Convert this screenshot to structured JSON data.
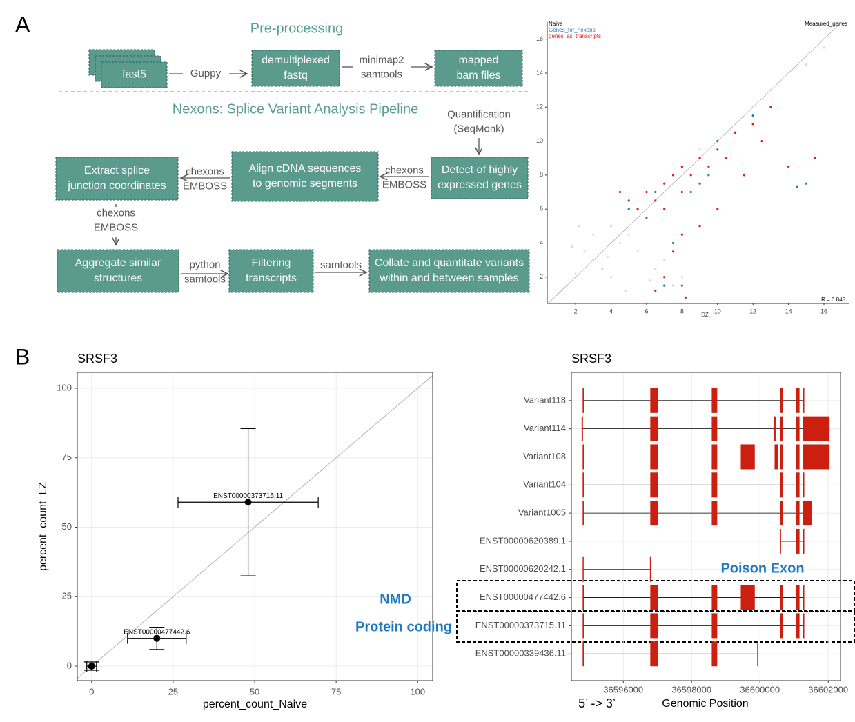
{
  "panel_labels": [
    "A",
    "B"
  ],
  "diagram": {
    "headings": [
      "Pre-processing",
      "Nexons: Splice Variant Analysis Pipeline"
    ],
    "nodes": [
      {
        "label": [
          "fast5"
        ]
      },
      {
        "label": [
          "demultiplexed",
          "fastq"
        ]
      },
      {
        "label": [
          "mapped",
          "bam files"
        ]
      },
      {
        "label": [
          "Detect of highly",
          "expressed genes"
        ]
      },
      {
        "label": [
          "Align cDNA sequences",
          "to genomic segments"
        ]
      },
      {
        "label": [
          "Extract splice",
          "junction coordinates"
        ]
      },
      {
        "label": [
          "Aggregate similar",
          "structures"
        ]
      },
      {
        "label": [
          "Filtering",
          "transcripts"
        ]
      },
      {
        "label": [
          "Collate and quantitate variants",
          "within and between samples"
        ]
      }
    ],
    "edges": [
      {
        "label": [
          "Guppy"
        ]
      },
      {
        "label": [
          "minimap2",
          "samtools"
        ]
      },
      {
        "label": [
          "Quantification",
          "(SeqMonk)"
        ]
      },
      {
        "label": [
          "chexons",
          "EMBOSS"
        ]
      },
      {
        "label": [
          "chexons",
          "EMBOSS"
        ]
      },
      {
        "label": [
          "chexons",
          "EMBOSS"
        ]
      },
      {
        "label": [
          "python",
          "samtools"
        ]
      },
      {
        "label": [
          "samtools"
        ]
      }
    ]
  },
  "chart_data": [
    {
      "type": "scatter",
      "ylabel": "Naive",
      "xlabel": "DZ",
      "annotation": "R = 0.845",
      "xlim": [
        0.4,
        17.4
      ],
      "ylim": [
        0.45,
        17.0
      ],
      "xticks": [
        2,
        4,
        6,
        8,
        10,
        12,
        14,
        16
      ],
      "yticks": [
        2,
        4,
        6,
        8,
        10,
        12,
        14,
        16
      ],
      "series": [
        {
          "name": "Measured_genes",
          "color": "#d9d9d9",
          "x": [
            1.5,
            2,
            2.5,
            3,
            3,
            3.5,
            4,
            4,
            4.5,
            5,
            5,
            5.5,
            6,
            6.5,
            7,
            7.5,
            8,
            9,
            12,
            13,
            14,
            15,
            16,
            2.2,
            3.8,
            6.2,
            4.8,
            1.8
          ],
          "values": [
            1.5,
            2.2,
            3.5,
            3,
            4.5,
            2.5,
            5,
            2,
            4,
            4.5,
            6,
            3.5,
            5.5,
            2.5,
            3,
            1.5,
            2,
            9.5,
            12,
            13,
            14,
            14.5,
            15.5,
            5,
            3.2,
            1.8,
            1.2,
            3.8
          ]
        },
        {
          "name": "Genes_for_nexons",
          "color": "#2b7bba",
          "x": [
            5,
            6.5,
            7,
            8,
            8.5,
            9,
            9.5,
            10,
            11,
            12,
            7.5,
            8,
            15,
            14.5,
            6
          ],
          "values": [
            6,
            7,
            1.5,
            8.5,
            7,
            9,
            8,
            10,
            10.5,
            11.5,
            4,
            1.5,
            7.5,
            7.3,
            5.5
          ]
        },
        {
          "name": "genes_as_transcripts",
          "color": "#e31a1c",
          "x": [
            5,
            5.5,
            6,
            6.5,
            7,
            7,
            7.5,
            8,
            8,
            8.5,
            9,
            9,
            9.5,
            10,
            10.5,
            11,
            12,
            12.5,
            13,
            7,
            7.5,
            8,
            9,
            10,
            6.5,
            4.5,
            15.5,
            14,
            11.5,
            8.2
          ],
          "values": [
            6.5,
            6,
            7,
            6.5,
            7.5,
            6,
            8,
            7,
            8.5,
            8,
            9,
            7.5,
            8.5,
            9.5,
            9,
            10.5,
            11,
            10,
            12,
            2,
            3.5,
            4.5,
            5,
            6,
            1.2,
            7,
            9,
            8.5,
            8,
            0.8
          ]
        }
      ]
    },
    {
      "type": "scatter",
      "title": "SRSF3",
      "xlabel": "percent_count_Naive",
      "ylabel": "percent_count_LZ",
      "xlim": [
        -4.4,
        104.6
      ],
      "ylim": [
        -5.2,
        105.7
      ],
      "xticks": [
        0,
        25,
        50,
        75,
        100
      ],
      "yticks": [
        0,
        25,
        50,
        75,
        100
      ],
      "grid": true,
      "series": [
        {
          "color": "#000000",
          "x": [
            48,
            20,
            0
          ],
          "values": [
            59,
            10,
            0
          ],
          "xerr": [
            21.5,
            9,
            1.5
          ],
          "yerr": [
            26.5,
            4,
            1.5
          ],
          "labels": [
            "ENST00000373715.11",
            "ENST00000477442.6",
            null
          ]
        }
      ]
    },
    {
      "type": "transcript",
      "title": "SRSF3",
      "xlabel": "Genomic Position",
      "direction": "5’ -> 3’",
      "xlim": [
        36594480,
        36602360
      ],
      "xticks": [
        36596000,
        36598000,
        36600000,
        36602000
      ],
      "color": "#cc1f10",
      "annotations": [
        "NMD",
        "Protein coding",
        "Poison Exon"
      ],
      "categories": [
        "Variant118",
        "Variant114",
        "Variant108",
        "Variant104",
        "Variant1005",
        "ENST00000620389.1",
        "ENST00000620242.1",
        "ENST00000477442.6",
        "ENST00000373715.11",
        "ENST00000339436.11"
      ],
      "exons": [
        [
          [
            36594810,
            36594850
          ],
          [
            36596790,
            36597010
          ],
          [
            36598590,
            36598750
          ],
          [
            36600590,
            36600670
          ],
          [
            36601060,
            36601160
          ],
          [
            36601260,
            36601300
          ]
        ],
        [
          [
            36594780,
            36594820
          ],
          [
            36596790,
            36597010
          ],
          [
            36598590,
            36598750
          ],
          [
            36600420,
            36600460
          ],
          [
            36600590,
            36600670
          ],
          [
            36601060,
            36601160
          ],
          [
            36601260,
            36602040
          ]
        ],
        [
          [
            36594810,
            36594850
          ],
          [
            36596790,
            36597010
          ],
          [
            36598590,
            36598750
          ],
          [
            36599440,
            36599850
          ],
          [
            36600430,
            36600530
          ],
          [
            36600590,
            36600670
          ],
          [
            36601060,
            36601160
          ],
          [
            36601260,
            36602040
          ]
        ],
        [
          [
            36594810,
            36594850
          ],
          [
            36596790,
            36597010
          ],
          [
            36598590,
            36598750
          ],
          [
            36600590,
            36600670
          ],
          [
            36601060,
            36601160
          ],
          [
            36601260,
            36601300
          ]
        ],
        [
          [
            36594810,
            36594850
          ],
          [
            36596790,
            36597010
          ],
          [
            36598590,
            36598750
          ],
          [
            36600590,
            36600670
          ],
          [
            36601060,
            36601160
          ],
          [
            36601260,
            36601520
          ]
        ],
        [
          [
            36600590,
            36600620
          ],
          [
            36601060,
            36601160
          ],
          [
            36601260,
            36601300
          ]
        ],
        [
          [
            36594810,
            36594840
          ],
          [
            36596780,
            36596800
          ]
        ],
        [
          [
            36594810,
            36594850
          ],
          [
            36596790,
            36597010
          ],
          [
            36598590,
            36598750
          ],
          [
            36599440,
            36599850
          ],
          [
            36600590,
            36600670
          ],
          [
            36601060,
            36601160
          ],
          [
            36601260,
            36601300
          ]
        ],
        [
          [
            36594810,
            36594850
          ],
          [
            36596790,
            36597010
          ],
          [
            36598590,
            36598750
          ],
          [
            36600590,
            36600670
          ],
          [
            36601060,
            36601160
          ],
          [
            36601260,
            36601300
          ]
        ],
        [
          [
            36594810,
            36594850
          ],
          [
            36596790,
            36597010
          ],
          [
            36598590,
            36598750
          ],
          [
            36599920,
            36599940
          ]
        ]
      ]
    }
  ]
}
